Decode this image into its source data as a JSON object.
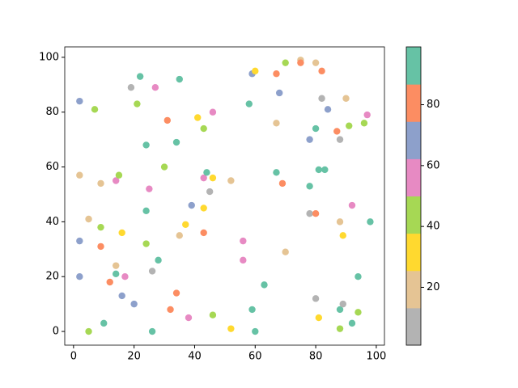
{
  "chart_data": {
    "type": "scatter",
    "x": [
      2,
      7,
      2,
      2,
      2,
      5,
      5,
      9,
      9,
      9,
      10,
      12,
      14,
      15,
      14,
      14,
      16,
      16,
      17,
      19,
      20,
      21,
      22,
      24,
      25,
      24,
      24,
      26,
      26,
      27,
      28,
      30,
      31,
      32,
      34,
      34,
      35,
      35,
      37,
      38,
      39,
      41,
      43,
      43,
      44,
      43,
      43,
      45,
      46,
      46,
      46,
      52,
      52,
      56,
      56,
      58,
      59,
      60,
      59,
      60,
      63,
      67,
      67,
      67,
      68,
      69,
      70,
      70,
      75,
      75,
      78,
      78,
      78,
      80,
      80,
      80,
      80,
      81,
      81,
      82,
      82,
      83,
      84,
      87,
      88,
      88,
      88,
      88,
      89,
      89,
      90,
      91,
      92,
      92,
      94,
      94,
      96,
      97,
      98
    ],
    "y": [
      84,
      81,
      57,
      33,
      20,
      41,
      0,
      54,
      38,
      31,
      3,
      18,
      55,
      57,
      24,
      21,
      36,
      13,
      20,
      89,
      10,
      83,
      93,
      68,
      52,
      44,
      32,
      22,
      0,
      89,
      26,
      60,
      77,
      8,
      69,
      14,
      92,
      35,
      39,
      5,
      46,
      78,
      74,
      56,
      58,
      45,
      36,
      51,
      80,
      56,
      6,
      55,
      1,
      33,
      26,
      83,
      94,
      95,
      8,
      0,
      17,
      94,
      76,
      58,
      87,
      54,
      98,
      29,
      99,
      98,
      70,
      53,
      43,
      98,
      74,
      43,
      12,
      59,
      5,
      95,
      85,
      59,
      81,
      73,
      70,
      40,
      8,
      1,
      35,
      10,
      85,
      75,
      46,
      3,
      20,
      7,
      76,
      79,
      40
    ],
    "c": [
      68,
      43,
      19,
      68,
      68,
      19,
      43,
      19,
      43,
      80,
      93,
      80,
      56,
      43,
      19,
      93,
      31,
      68,
      56,
      7,
      68,
      43,
      93,
      93,
      56,
      93,
      43,
      7,
      93,
      56,
      93,
      43,
      80,
      80,
      93,
      80,
      93,
      19,
      31,
      56,
      68,
      31,
      43,
      56,
      93,
      31,
      80,
      7,
      56,
      31,
      43,
      19,
      31,
      56,
      56,
      93,
      68,
      31,
      93,
      93,
      93,
      80,
      19,
      93,
      68,
      80,
      43,
      19,
      19,
      80,
      68,
      93,
      7,
      19,
      93,
      80,
      7,
      93,
      31,
      80,
      7,
      93,
      68,
      80,
      7,
      19,
      93,
      43,
      31,
      7,
      19,
      43,
      56,
      93,
      93,
      43,
      43,
      56,
      93
    ],
    "colormap": [
      "#b3b3b3",
      "#e5c494",
      "#ffd92f",
      "#a6d854",
      "#e78ac3",
      "#8da0cb",
      "#fc8d62",
      "#66c2a5"
    ],
    "clim": [
      1,
      99
    ],
    "cticks": [
      20,
      40,
      60,
      80
    ],
    "xlim": [
      -2.9,
      102.7
    ],
    "ylim": [
      -5,
      103.8
    ],
    "xticks": [
      0,
      20,
      40,
      60,
      80,
      100
    ],
    "yticks": [
      0,
      20,
      40,
      60,
      80,
      100
    ]
  }
}
